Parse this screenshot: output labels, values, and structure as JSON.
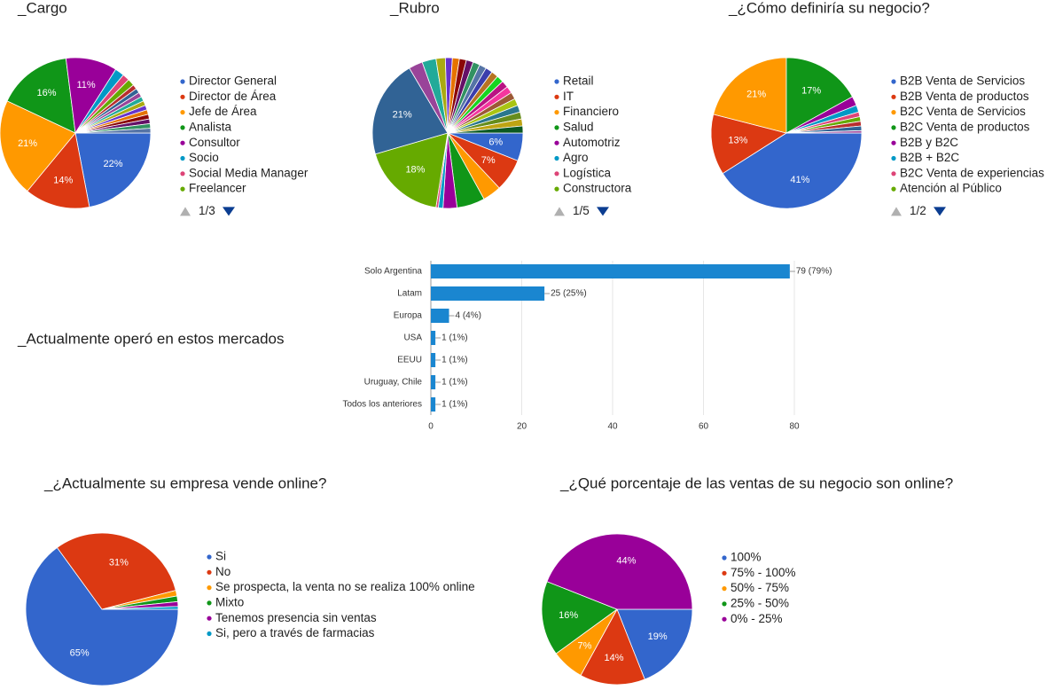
{
  "chart_data": [
    {
      "type": "pie",
      "title": "_Cargo",
      "categories": [
        "Director General",
        "Director de Área",
        "Jefe de Área",
        "Analista",
        "Consultor",
        "Socio",
        "Social Media Manager",
        "Freelancer",
        null,
        null,
        null,
        null,
        null,
        null,
        null,
        null,
        null,
        null,
        null
      ],
      "values": [
        22,
        14,
        21,
        16,
        11,
        2,
        1.5,
        1.5,
        1,
        1,
        1,
        1,
        1,
        1,
        1,
        1,
        1,
        1,
        1
      ],
      "value_labels": [
        "22%",
        "14%",
        "21%",
        "16%",
        "11%",
        null,
        null,
        null,
        null,
        null,
        null,
        null,
        null,
        null,
        null,
        null,
        null,
        null,
        null
      ],
      "colors": [
        "#3366cc",
        "#dc3912",
        "#ff9900",
        "#109618",
        "#990099",
        "#0099c6",
        "#dd4477",
        "#66aa00",
        "#b82e2e",
        "#316395",
        "#994499",
        "#22aa99",
        "#aaaa11",
        "#6633cc",
        "#e67300",
        "#8b0707",
        "#651067",
        "#329262",
        "#5574a6"
      ],
      "legend_page": "1/3"
    },
    {
      "type": "pie",
      "title": "_Rubro",
      "categories": [
        "Retail",
        "IT",
        "Financiero",
        "Salud",
        "Automotriz",
        "Agro",
        "Logística",
        "Constructora",
        null,
        null,
        null,
        null,
        null,
        null,
        null,
        null,
        null,
        null,
        null,
        null,
        null,
        null,
        null,
        null,
        null,
        null,
        null,
        null,
        null
      ],
      "values": [
        6,
        7,
        4,
        6,
        3,
        1,
        0.5,
        18,
        21,
        3,
        3,
        2,
        1.5,
        1.5,
        1.5,
        1.5,
        1.5,
        1.5,
        1.5,
        1.5,
        1.5,
        1.5,
        1.5,
        1.5,
        1.5,
        1.5,
        1.5,
        1.5,
        1.5
      ],
      "value_labels": [
        "6%",
        "7%",
        null,
        null,
        null,
        null,
        null,
        "18%",
        "21%",
        null,
        null,
        null,
        null,
        null,
        null,
        null,
        null,
        null,
        null,
        null,
        null,
        null,
        null,
        null,
        null,
        null,
        null,
        null,
        null
      ],
      "colors": [
        "#3366cc",
        "#dc3912",
        "#ff9900",
        "#109618",
        "#990099",
        "#0099c6",
        "#dd4477",
        "#66aa00",
        "#316395",
        "#994499",
        "#22aa99",
        "#aaaa11",
        "#6633cc",
        "#e67300",
        "#8b0707",
        "#651067",
        "#329262",
        "#5574a6",
        "#3b3eac",
        "#b77322",
        "#16d620",
        "#b91383",
        "#f4359e",
        "#9c5935",
        "#a9c413",
        "#2a778d",
        "#668d1c",
        "#bea413",
        "#0c5922"
      ],
      "legend_page": "1/5"
    },
    {
      "type": "pie",
      "title": "_¿Cómo definiría su negocio?",
      "categories": [
        "B2B Venta de Servicios",
        "B2B Venta de productos",
        "B2C Venta de Servicios",
        "B2C Venta de productos",
        "B2B y B2C",
        "B2B + B2C",
        "B2C Venta de experiencias",
        "Atención al Público",
        null,
        null,
        null
      ],
      "values": [
        41,
        13,
        21,
        17,
        2,
        1.5,
        1,
        1,
        1,
        1,
        0.5
      ],
      "value_labels": [
        "41%",
        "13%",
        "21%",
        "17%",
        null,
        null,
        null,
        null,
        null,
        null,
        null
      ],
      "colors": [
        "#3366cc",
        "#dc3912",
        "#ff9900",
        "#109618",
        "#990099",
        "#0099c6",
        "#dd4477",
        "#66aa00",
        "#b82e2e",
        "#316395",
        "#994499"
      ],
      "legend_page": "1/2"
    },
    {
      "type": "hbar",
      "title": "_Actualmente operó en estos mercados",
      "categories": [
        "Solo Argentina",
        "Latam",
        "Europa",
        "USA",
        "EEUU",
        "Uruguay, Chile",
        "Todos los anteriores"
      ],
      "values": [
        79,
        25,
        4,
        1,
        1,
        1,
        1
      ],
      "value_labels": [
        "79 (79%)",
        "25 (25%)",
        "4 (4%)",
        "1 (1%)",
        "1 (1%)",
        "1 (1%)",
        "1 (1%)"
      ],
      "color": "#1a86d0",
      "xlim": [
        0,
        80
      ],
      "xticks": [
        0,
        20,
        40,
        60,
        80
      ],
      "grid": true
    },
    {
      "type": "pie",
      "title": "_¿Actualmente su empresa vende online?",
      "categories": [
        "Si",
        "No",
        "Se prospecta, la venta no se realiza 100% online",
        "Mixto",
        "Tenemos presencia sin ventas",
        "Si, pero a través de farmacias"
      ],
      "values": [
        65,
        31,
        1.2,
        1.2,
        1,
        0.6
      ],
      "value_labels": [
        "65%",
        "31%",
        null,
        null,
        null,
        null
      ],
      "colors": [
        "#3366cc",
        "#dc3912",
        "#ff9900",
        "#109618",
        "#990099",
        "#0099c6"
      ]
    },
    {
      "type": "pie",
      "title": "_¿Qué porcentaje de las ventas de su negocio son online?",
      "categories": [
        "100%",
        "75% - 100%",
        "50% - 75%",
        "25% - 50%",
        "0% - 25%"
      ],
      "values": [
        19,
        14,
        7,
        16,
        44
      ],
      "value_labels": [
        "19%",
        "14%",
        "7%",
        "16%",
        "44%"
      ],
      "colors": [
        "#3366cc",
        "#dc3912",
        "#ff9900",
        "#109618",
        "#990099"
      ]
    }
  ]
}
